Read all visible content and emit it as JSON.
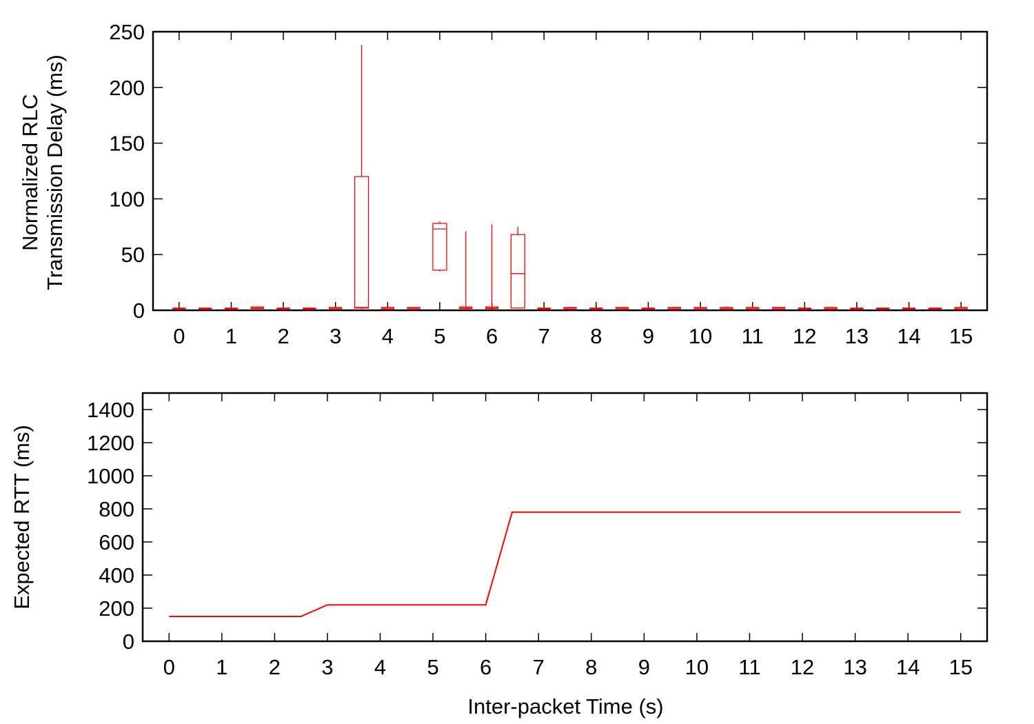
{
  "colors": {
    "series": "#ff0000",
    "axes": "#000000",
    "background": "#ffffff"
  },
  "chart_data": [
    {
      "type": "box",
      "xlabel": "",
      "ylabel_lines": [
        "Normalized RLC",
        "Transmission Delay (ms)"
      ],
      "ylim": [
        0,
        250
      ],
      "xlim": [
        -0.5,
        15.5
      ],
      "yticks": [
        0,
        50,
        100,
        150,
        200,
        250
      ],
      "xticks": [
        0,
        1,
        2,
        3,
        4,
        5,
        6,
        7,
        8,
        9,
        10,
        11,
        12,
        13,
        14,
        15
      ],
      "grid": false,
      "boxes": [
        {
          "x": 0.0,
          "whisker_low": 0.5,
          "q1": 1.0,
          "median": 1.5,
          "q3": 2.0,
          "whisker_high": 2.5
        },
        {
          "x": 0.5,
          "whisker_low": 0.5,
          "q1": 1.0,
          "median": 1.5,
          "q3": 2.0,
          "whisker_high": 2.5
        },
        {
          "x": 1.0,
          "whisker_low": 0.5,
          "q1": 1.0,
          "median": 1.5,
          "q3": 2.0,
          "whisker_high": 2.5
        },
        {
          "x": 1.5,
          "whisker_low": 1.0,
          "q1": 1.5,
          "median": 2.0,
          "q3": 3.0,
          "whisker_high": 3.5
        },
        {
          "x": 2.0,
          "whisker_low": 0.5,
          "q1": 1.0,
          "median": 1.5,
          "q3": 2.0,
          "whisker_high": 2.5
        },
        {
          "x": 2.5,
          "whisker_low": 0.5,
          "q1": 1.0,
          "median": 1.5,
          "q3": 2.0,
          "whisker_high": 2.5
        },
        {
          "x": 3.0,
          "whisker_low": 0.5,
          "q1": 1.0,
          "median": 2.0,
          "q3": 2.5,
          "whisker_high": 3.0
        },
        {
          "x": 3.5,
          "whisker_low": 1.0,
          "q1": 2.0,
          "median": 2.5,
          "q3": 120,
          "whisker_high": 238
        },
        {
          "x": 4.0,
          "whisker_low": 0.5,
          "q1": 1.0,
          "median": 2.0,
          "q3": 2.5,
          "whisker_high": 3.0
        },
        {
          "x": 4.5,
          "whisker_low": 0.5,
          "q1": 1.0,
          "median": 2.0,
          "q3": 2.5,
          "whisker_high": 3.0
        },
        {
          "x": 5.0,
          "whisker_low": 35,
          "q1": 36,
          "median": 73,
          "q3": 78,
          "whisker_high": 80
        },
        {
          "x": 5.5,
          "whisker_low": 1.0,
          "q1": 1.5,
          "median": 2.0,
          "q3": 3.0,
          "whisker_high": 71
        },
        {
          "x": 6.0,
          "whisker_low": 1.0,
          "q1": 1.5,
          "median": 2.0,
          "q3": 3.0,
          "whisker_high": 77
        },
        {
          "x": 6.5,
          "whisker_low": 1.5,
          "q1": 2.0,
          "median": 33,
          "q3": 68,
          "whisker_high": 75
        },
        {
          "x": 7.0,
          "whisker_low": 0.5,
          "q1": 1.0,
          "median": 1.5,
          "q3": 2.0,
          "whisker_high": 2.5
        },
        {
          "x": 7.5,
          "whisker_low": 0.5,
          "q1": 1.0,
          "median": 2.0,
          "q3": 2.5,
          "whisker_high": 3.0
        },
        {
          "x": 8.0,
          "whisker_low": 0.5,
          "q1": 1.0,
          "median": 1.5,
          "q3": 2.0,
          "whisker_high": 2.5
        },
        {
          "x": 8.5,
          "whisker_low": 0.5,
          "q1": 1.0,
          "median": 2.0,
          "q3": 2.5,
          "whisker_high": 3.0
        },
        {
          "x": 9.0,
          "whisker_low": 0.5,
          "q1": 1.0,
          "median": 1.5,
          "q3": 2.0,
          "whisker_high": 2.5
        },
        {
          "x": 9.5,
          "whisker_low": 0.5,
          "q1": 1.0,
          "median": 2.0,
          "q3": 2.5,
          "whisker_high": 3.0
        },
        {
          "x": 10.0,
          "whisker_low": 0.5,
          "q1": 1.0,
          "median": 2.0,
          "q3": 2.5,
          "whisker_high": 3.5
        },
        {
          "x": 10.5,
          "whisker_low": 0.5,
          "q1": 1.0,
          "median": 2.0,
          "q3": 2.5,
          "whisker_high": 3.5
        },
        {
          "x": 11.0,
          "whisker_low": 0.5,
          "q1": 1.0,
          "median": 2.0,
          "q3": 2.5,
          "whisker_high": 3.5
        },
        {
          "x": 11.5,
          "whisker_low": 0.5,
          "q1": 1.0,
          "median": 2.0,
          "q3": 2.5,
          "whisker_high": 3.0
        },
        {
          "x": 12.0,
          "whisker_low": 0.5,
          "q1": 1.0,
          "median": 1.5,
          "q3": 2.0,
          "whisker_high": 2.5
        },
        {
          "x": 12.5,
          "whisker_low": 0.5,
          "q1": 1.0,
          "median": 2.0,
          "q3": 2.5,
          "whisker_high": 3.0
        },
        {
          "x": 13.0,
          "whisker_low": 0.5,
          "q1": 1.0,
          "median": 1.5,
          "q3": 2.0,
          "whisker_high": 2.5
        },
        {
          "x": 13.5,
          "whisker_low": 0.5,
          "q1": 1.0,
          "median": 1.5,
          "q3": 2.0,
          "whisker_high": 2.5
        },
        {
          "x": 14.0,
          "whisker_low": 0.5,
          "q1": 1.0,
          "median": 1.5,
          "q3": 2.0,
          "whisker_high": 2.5
        },
        {
          "x": 14.5,
          "whisker_low": 0.5,
          "q1": 1.0,
          "median": 1.5,
          "q3": 2.0,
          "whisker_high": 2.5
        },
        {
          "x": 15.0,
          "whisker_low": 0.5,
          "q1": 1.0,
          "median": 2.0,
          "q3": 2.5,
          "whisker_high": 3.0
        }
      ]
    },
    {
      "type": "line",
      "xlabel": "Inter-packet Time (s)",
      "ylabel": "Expected RTT (ms)",
      "ylim": [
        0,
        1500
      ],
      "xlim": [
        -0.5,
        15.5
      ],
      "yticks": [
        0,
        200,
        400,
        600,
        800,
        1000,
        1200,
        1400
      ],
      "xticks": [
        0,
        1,
        2,
        3,
        4,
        5,
        6,
        7,
        8,
        9,
        10,
        11,
        12,
        13,
        14,
        15
      ],
      "grid": false,
      "series": [
        {
          "x": [
            0,
            2.5,
            3,
            6,
            6.5,
            15
          ],
          "y": [
            150,
            150,
            220,
            220,
            780,
            780
          ]
        }
      ]
    }
  ]
}
